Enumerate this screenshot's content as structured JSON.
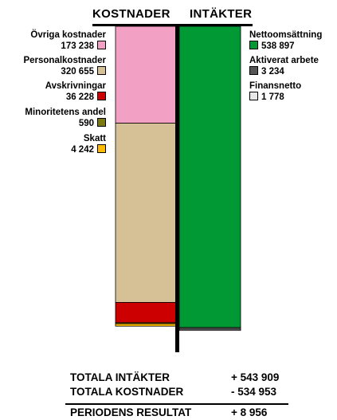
{
  "header": {
    "left": "KOSTNADER",
    "right": "INTÄKTER"
  },
  "chart_data": {
    "type": "bar",
    "title": "",
    "costs": [
      {
        "name": "Övriga kostnader",
        "value_label": "173 238",
        "value": 173238,
        "color": "#f2a0c4"
      },
      {
        "name": "Personalkostnader",
        "value_label": "320 655",
        "value": 320655,
        "color": "#d6c096"
      },
      {
        "name": "Avskrivningar",
        "value_label": "36 228",
        "value": 36228,
        "color": "#cc0000"
      },
      {
        "name": "Minoritetens andel",
        "value_label": "590",
        "value": 590,
        "color": "#7a7a10"
      },
      {
        "name": "Skatt",
        "value_label": "4 242",
        "value": 4242,
        "color": "#ffbb00"
      }
    ],
    "income": [
      {
        "name": "Nettoomsättning",
        "value_label": "538 897",
        "value": 538897,
        "color": "#009933"
      },
      {
        "name": "Aktiverat arbete",
        "value_label": "3 234",
        "value": 3234,
        "color": "#555555"
      },
      {
        "name": "Finansnetto",
        "value_label": "1 778",
        "value": 1778,
        "color": "#e8e8e8"
      }
    ]
  },
  "totals": [
    {
      "label": "TOTALA INTÄKTER",
      "value": "+ 543 909"
    },
    {
      "label": "TOTALA KOSTNADER",
      "value": "- 534 953"
    },
    {
      "label": "PERIODENS RESULTAT",
      "value": "+ 8 956"
    }
  ]
}
